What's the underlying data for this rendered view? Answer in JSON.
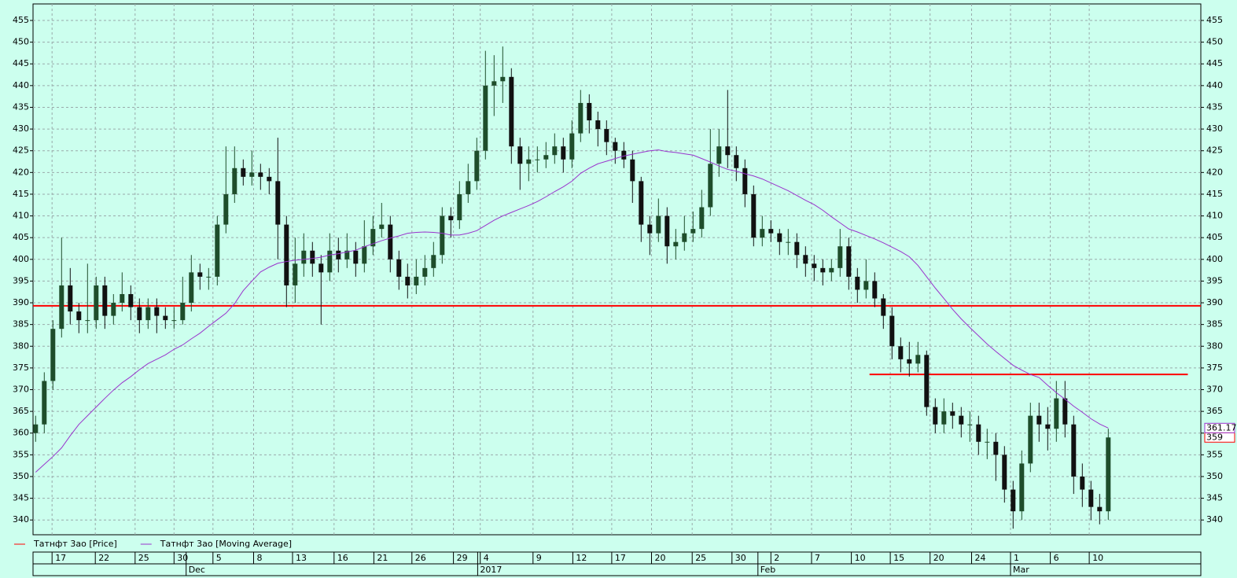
{
  "chart_data": {
    "type": "candlestick",
    "background": "#ccffee",
    "grid": true,
    "xlim": [
      -0.3,
      134.7
    ],
    "ylim": [
      336.6,
      458.8
    ],
    "yticks": [
      340,
      345,
      350,
      355,
      360,
      365,
      370,
      375,
      380,
      385,
      390,
      395,
      400,
      405,
      410,
      415,
      420,
      425,
      430,
      435,
      440,
      445,
      450,
      455
    ],
    "xticks": [
      {
        "value": 1.9,
        "label": "17"
      },
      {
        "value": 6.9,
        "label": "22"
      },
      {
        "value": 11.5,
        "label": "25"
      },
      {
        "value": 16,
        "label": "30"
      },
      {
        "value": 20.5,
        "label": "5"
      },
      {
        "value": 25.2,
        "label": "8"
      },
      {
        "value": 29.7,
        "label": "13"
      },
      {
        "value": 34.5,
        "label": "16"
      },
      {
        "value": 39.1,
        "label": "21"
      },
      {
        "value": 43.5,
        "label": "26"
      },
      {
        "value": 48.3,
        "label": "29"
      },
      {
        "value": 51.4,
        "label": "4"
      },
      {
        "value": 57.5,
        "label": "9"
      },
      {
        "value": 62.1,
        "label": "12"
      },
      {
        "value": 66.6,
        "label": "17"
      },
      {
        "value": 71.2,
        "label": "20"
      },
      {
        "value": 75.9,
        "label": "25"
      },
      {
        "value": 80.5,
        "label": "30"
      },
      {
        "value": 85,
        "label": "2"
      },
      {
        "value": 89.7,
        "label": "7"
      },
      {
        "value": 94.3,
        "label": "10"
      },
      {
        "value": 98.8,
        "label": "15"
      },
      {
        "value": 103.4,
        "label": "20"
      },
      {
        "value": 108.2,
        "label": "24"
      },
      {
        "value": 112.7,
        "label": "1"
      },
      {
        "value": 117.3,
        "label": "6"
      },
      {
        "value": 121.8,
        "label": "10"
      }
    ],
    "xticks_month": [
      {
        "value": 17.4,
        "label": "Dec"
      },
      {
        "value": 51.1,
        "label": "2017"
      },
      {
        "value": 83.5,
        "label": "Feb"
      },
      {
        "value": 112.7,
        "label": "Mar"
      }
    ],
    "levels": [
      {
        "value": 389.3,
        "color": "#ff0000"
      },
      {
        "value": 373.5,
        "x": [
          96.4,
          133.2
        ],
        "color": "#ff0000"
      }
    ],
    "series": [
      {
        "name": "Татнфт 3ао [Price]",
        "type": "candlestick",
        "color": "#ff0000",
        "up_color": "#1e4d2b",
        "down_color": "#111111",
        "open": [
          360,
          362,
          372,
          384,
          394,
          388,
          386,
          386,
          394,
          387,
          390,
          392,
          389,
          386,
          389,
          387,
          386,
          386,
          390,
          397,
          396,
          396,
          408,
          415,
          421,
          419,
          420,
          419,
          418,
          408,
          394,
          399,
          402,
          399,
          397,
          402,
          400,
          402,
          399,
          403,
          407,
          408,
          400,
          396,
          394,
          396,
          398,
          401,
          410,
          409,
          415,
          418,
          425,
          440,
          441,
          442,
          426,
          422,
          423,
          423,
          424,
          426,
          423,
          429,
          436,
          432,
          430,
          427,
          425,
          423,
          418,
          408,
          406,
          410,
          403,
          404,
          406,
          407,
          412,
          422,
          426,
          424,
          421,
          415,
          405,
          407,
          406,
          404,
          404,
          401,
          399,
          398,
          397,
          398,
          403,
          396,
          393,
          395,
          391,
          387,
          380,
          377,
          376,
          378,
          366,
          362,
          365,
          364,
          362,
          362,
          358,
          358,
          355,
          347,
          342,
          353,
          364,
          362,
          361,
          368,
          362,
          350,
          347,
          343,
          342
        ],
        "high": [
          364,
          374,
          386,
          405,
          398,
          390,
          399,
          396,
          396,
          392,
          397,
          394,
          391,
          391,
          391,
          389,
          389,
          396,
          401,
          399,
          398,
          410,
          426,
          426,
          423,
          425,
          422,
          421,
          428,
          410,
          405,
          406,
          404,
          401,
          406,
          405,
          406,
          404,
          409,
          410,
          413,
          410,
          402,
          399,
          400,
          401,
          404,
          412,
          412,
          418,
          422,
          428,
          448,
          447,
          449,
          444,
          428,
          426,
          426,
          427,
          429,
          428,
          432,
          439,
          438,
          434,
          432,
          428,
          427,
          425,
          419,
          410,
          414,
          412,
          407,
          410,
          411,
          416,
          430,
          430,
          439,
          426,
          423,
          417,
          410,
          409,
          407,
          407,
          406,
          403,
          401,
          400,
          400,
          407,
          405,
          398,
          400,
          397,
          392,
          389,
          382,
          381,
          381,
          379,
          368,
          368,
          367,
          366,
          365,
          364,
          361,
          360,
          357,
          349,
          356,
          367,
          367,
          366,
          372,
          372,
          364,
          353,
          349,
          346,
          361
        ],
        "low": [
          358,
          360,
          370,
          382,
          385,
          383,
          383,
          384,
          384,
          385,
          388,
          386,
          383,
          384,
          383,
          384,
          384,
          385,
          388,
          393,
          393,
          394,
          406,
          413,
          417,
          417,
          416,
          415,
          400,
          389,
          390,
          396,
          396,
          385,
          395,
          397,
          398,
          396,
          397,
          401,
          405,
          397,
          393,
          391,
          392,
          394,
          396,
          399,
          405,
          407,
          413,
          416,
          423,
          433,
          436,
          422,
          416,
          418,
          420,
          421,
          422,
          420,
          421,
          427,
          429,
          426,
          424,
          422,
          421,
          413,
          404,
          401,
          404,
          399,
          400,
          402,
          404,
          405,
          410,
          419,
          421,
          418,
          412,
          403,
          403,
          404,
          401,
          401,
          398,
          396,
          395,
          394,
          395,
          396,
          393,
          390,
          391,
          389,
          384,
          377,
          374,
          373,
          374,
          364,
          360,
          360,
          361,
          359,
          358,
          355,
          354,
          349,
          344,
          338,
          340,
          351,
          358,
          356,
          358,
          359,
          346,
          343,
          340,
          339,
          340
        ],
        "close": [
          362,
          372,
          384,
          394,
          388,
          386,
          386,
          394,
          387,
          390,
          392,
          389,
          386,
          389,
          387,
          386,
          386,
          390,
          397,
          396,
          396,
          408,
          415,
          421,
          419,
          420,
          419,
          418,
          408,
          394,
          399,
          402,
          399,
          397,
          402,
          400,
          402,
          399,
          403,
          407,
          408,
          400,
          396,
          394,
          396,
          398,
          401,
          410,
          409,
          415,
          418,
          425,
          440,
          441,
          442,
          426,
          422,
          423,
          423,
          424,
          426,
          423,
          429,
          436,
          432,
          430,
          427,
          425,
          423,
          418,
          408,
          406,
          410,
          403,
          404,
          406,
          407,
          412,
          422,
          426,
          424,
          421,
          415,
          405,
          407,
          406,
          404,
          404,
          401,
          399,
          398,
          397,
          398,
          403,
          396,
          393,
          395,
          391,
          387,
          380,
          377,
          376,
          378,
          366,
          362,
          365,
          364,
          362,
          362,
          358,
          358,
          355,
          347,
          342,
          353,
          364,
          362,
          361,
          368,
          362,
          350,
          347,
          343,
          342,
          359
        ]
      },
      {
        "name": "Татнфт 3ао [Moving Average]",
        "type": "line",
        "color": "#9933cc",
        "values": [
          351.0,
          352.8,
          354.6,
          356.6,
          359.4,
          362.0,
          364.0,
          366.0,
          368.0,
          369.9,
          371.6,
          373.0,
          374.6,
          376.0,
          377.0,
          378.0,
          379.3,
          380.3,
          381.7,
          383.0,
          384.6,
          386.1,
          387.6,
          389.8,
          392.8,
          395.0,
          397.1,
          398.2,
          399.1,
          399.5,
          399.8,
          400.0,
          400.2,
          400.5,
          401.0,
          401.3,
          401.7,
          402.1,
          402.9,
          403.6,
          404.3,
          404.9,
          405.4,
          406.0,
          406.2,
          406.3,
          406.2,
          406.0,
          405.6,
          405.6,
          406.0,
          406.6,
          407.8,
          409.0,
          410.0,
          410.8,
          411.6,
          412.4,
          413.3,
          414.4,
          415.6,
          416.7,
          418.0,
          419.8,
          421.0,
          422.0,
          422.6,
          423.2,
          423.8,
          424.2,
          424.6,
          425.0,
          425.2,
          424.8,
          424.6,
          424.3,
          424.0,
          423.2,
          422.4,
          421.5,
          420.7,
          420.3,
          419.7,
          419.2,
          418.5,
          417.6,
          416.7,
          415.8,
          414.7,
          413.6,
          412.6,
          411.3,
          409.8,
          408.4,
          407.0,
          406.3,
          405.5,
          404.7,
          403.8,
          402.8,
          401.8,
          400.6,
          398.6,
          396.0,
          393.4,
          391.0,
          388.5,
          386.3,
          384.3,
          382.4,
          380.5,
          378.8,
          377.2,
          375.6,
          374.5,
          373.5,
          372.8,
          371.0,
          369.3,
          367.8,
          366.2,
          364.8,
          363.3,
          362.1,
          361.17
        ]
      }
    ]
  }
}
